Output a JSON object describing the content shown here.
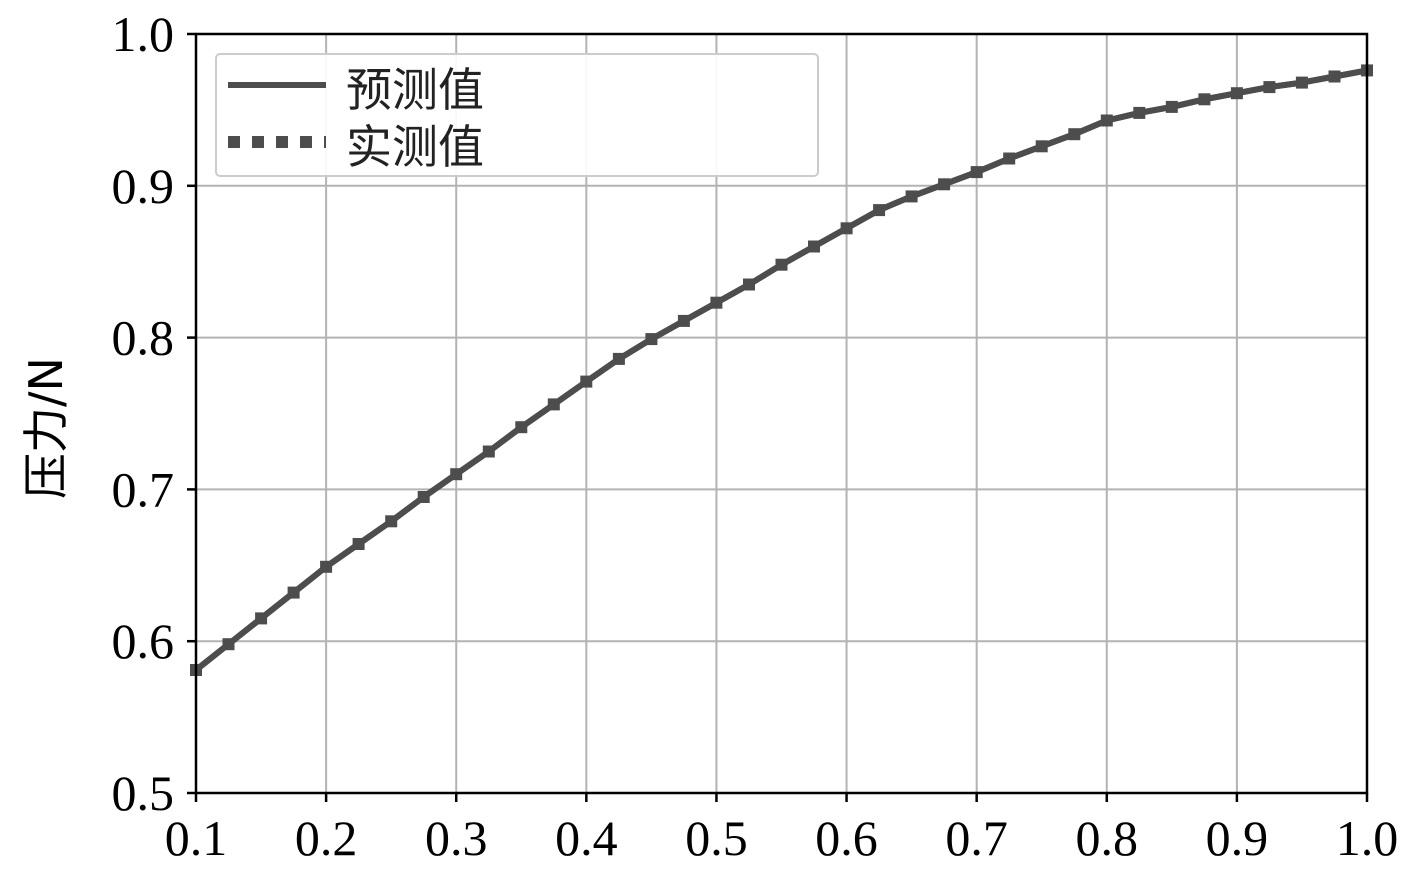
{
  "chart_data": {
    "type": "line",
    "title": "",
    "xlabel": "",
    "ylabel": "压力/N",
    "xlim": [
      0.1,
      1.0
    ],
    "ylim": [
      0.5,
      1.0
    ],
    "xticks": [
      "0.1",
      "0.2",
      "0.3",
      "0.4",
      "0.5",
      "0.6",
      "0.7",
      "0.8",
      "0.9",
      "1.0"
    ],
    "yticks": [
      "0.5",
      "0.6",
      "0.7",
      "0.8",
      "0.9",
      "1.0"
    ],
    "grid": true,
    "legend_position": "top-left",
    "series": [
      {
        "name": "预测值",
        "style": "solid",
        "color": "#4d4d4d",
        "x": [
          0.1,
          0.125,
          0.15,
          0.175,
          0.2,
          0.225,
          0.25,
          0.275,
          0.3,
          0.325,
          0.35,
          0.375,
          0.4,
          0.425,
          0.45,
          0.475,
          0.5,
          0.525,
          0.55,
          0.575,
          0.6,
          0.625,
          0.65,
          0.675,
          0.7,
          0.725,
          0.75,
          0.775,
          0.8,
          0.825,
          0.85,
          0.875,
          0.9,
          0.925,
          0.95,
          0.975,
          1.0
        ],
        "y": [
          0.581,
          0.598,
          0.615,
          0.632,
          0.649,
          0.664,
          0.679,
          0.695,
          0.71,
          0.725,
          0.741,
          0.756,
          0.771,
          0.786,
          0.799,
          0.811,
          0.823,
          0.835,
          0.848,
          0.86,
          0.872,
          0.884,
          0.893,
          0.901,
          0.909,
          0.918,
          0.926,
          0.934,
          0.943,
          0.948,
          0.952,
          0.957,
          0.961,
          0.965,
          0.968,
          0.972,
          0.976
        ]
      },
      {
        "name": "实测值",
        "style": "dotted",
        "color": "#4d4d4d",
        "x": [
          0.1,
          0.125,
          0.15,
          0.175,
          0.2,
          0.225,
          0.25,
          0.275,
          0.3,
          0.325,
          0.35,
          0.375,
          0.4,
          0.425,
          0.45,
          0.475,
          0.5,
          0.525,
          0.55,
          0.575,
          0.6,
          0.625,
          0.65,
          0.675,
          0.7,
          0.725,
          0.75,
          0.775,
          0.8,
          0.825,
          0.85,
          0.875,
          0.9,
          0.925,
          0.95,
          0.975,
          1.0
        ],
        "y": [
          0.581,
          0.598,
          0.615,
          0.632,
          0.649,
          0.664,
          0.679,
          0.695,
          0.71,
          0.725,
          0.741,
          0.756,
          0.771,
          0.786,
          0.799,
          0.811,
          0.823,
          0.835,
          0.848,
          0.86,
          0.872,
          0.884,
          0.893,
          0.901,
          0.909,
          0.918,
          0.926,
          0.934,
          0.943,
          0.948,
          0.952,
          0.957,
          0.961,
          0.965,
          0.968,
          0.972,
          0.976
        ]
      }
    ]
  }
}
